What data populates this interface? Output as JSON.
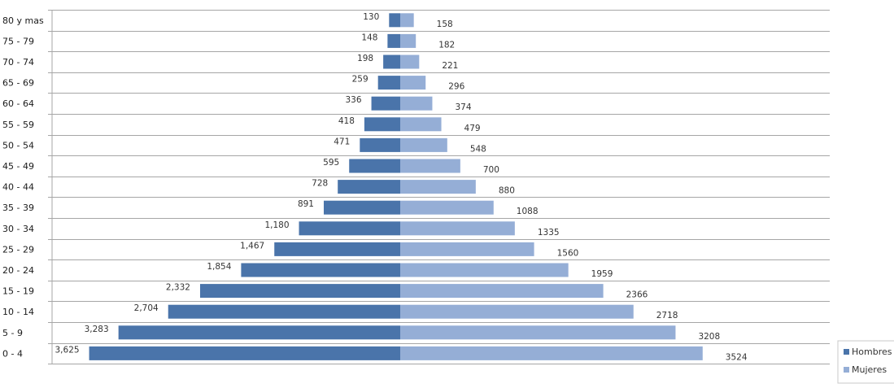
{
  "chart_data": {
    "type": "bar",
    "orientation": "horizontal",
    "layout": "population-pyramid",
    "categories": [
      "80 y mas",
      "75 - 79",
      "70 - 74",
      "65 - 69",
      "60 - 64",
      "55 - 59",
      "50 - 54",
      "45 - 49",
      "40 - 44",
      "35 - 39",
      "30 - 34",
      "25 - 29",
      "20 - 24",
      "15 - 19",
      "10 - 14",
      "5 - 9",
      "0 - 4"
    ],
    "series": [
      {
        "name": "Hombres",
        "color": "#4a74aa",
        "side": "left",
        "values": [
          130,
          148,
          198,
          259,
          336,
          418,
          471,
          595,
          728,
          891,
          1180,
          1467,
          1854,
          2332,
          2704,
          3283,
          3625
        ],
        "labels": [
          "130",
          "148",
          "198",
          "259",
          "336",
          "418",
          "471",
          "595",
          "728",
          "891",
          "1,180",
          "1,467",
          "1,854",
          "2,332",
          "2,704",
          "3,283",
          "3,625"
        ]
      },
      {
        "name": "Mujeres",
        "color": "#95aed6",
        "side": "right",
        "values": [
          158,
          182,
          221,
          296,
          374,
          479,
          548,
          700,
          880,
          1088,
          1335,
          1560,
          1959,
          2366,
          2718,
          3208,
          3524
        ],
        "labels": [
          "158",
          "182",
          "221",
          "296",
          "374",
          "479",
          "548",
          "700",
          "880",
          "1088",
          "1335",
          "1560",
          "1959",
          "2366",
          "2718",
          "3208",
          "3524"
        ]
      }
    ],
    "title": "",
    "xlabel": "",
    "ylabel": "",
    "grid": true,
    "legend": "bottom-right",
    "colors": {
      "grid": "#a6a6a6",
      "axis": "#a6a6a6"
    }
  }
}
